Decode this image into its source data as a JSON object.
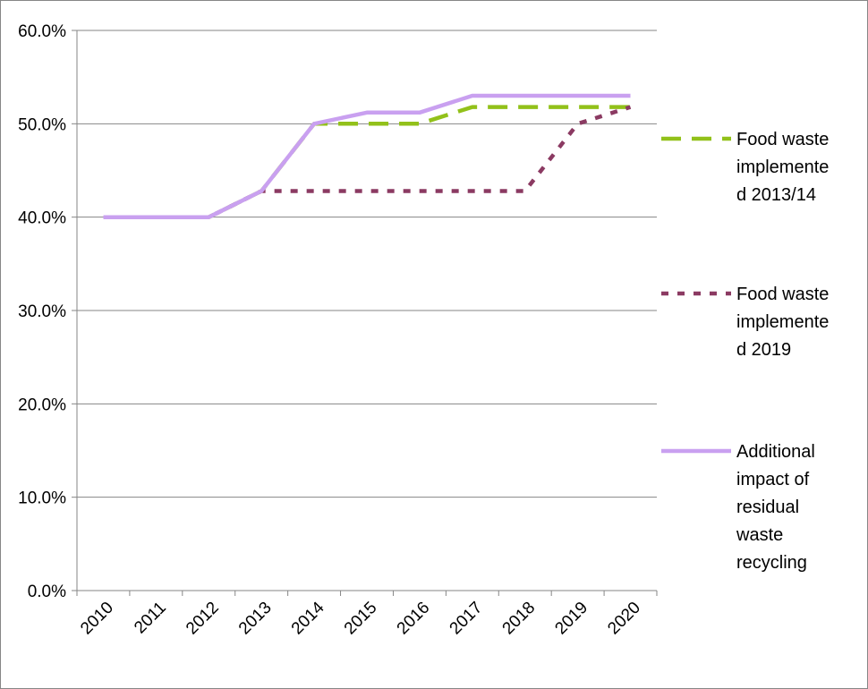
{
  "chart_data": {
    "type": "line",
    "title": "",
    "xlabel": "",
    "ylabel": "",
    "categories": [
      "2010",
      "2011",
      "2012",
      "2013",
      "2014",
      "2015",
      "2016",
      "2017",
      "2018",
      "2019",
      "2020"
    ],
    "ylim": [
      0,
      60
    ],
    "y_ticks": [
      "0.0%",
      "10.0%",
      "20.0%",
      "30.0%",
      "40.0%",
      "50.0%",
      "60.0%"
    ],
    "grid": true,
    "legend_position": "right",
    "series": [
      {
        "name_lines": [
          "Food waste",
          "implemente",
          "d 2013/14"
        ],
        "color": "#92c11a",
        "style": "long-dash",
        "values": [
          40.0,
          40.0,
          40.0,
          42.8,
          50.0,
          50.0,
          50.0,
          51.8,
          51.8,
          51.8,
          51.8
        ]
      },
      {
        "name_lines": [
          "Food waste",
          "implemente",
          "d 2019"
        ],
        "color": "#8b3a62",
        "style": "dot",
        "values": [
          40.0,
          40.0,
          40.0,
          42.8,
          42.8,
          42.8,
          42.8,
          42.8,
          42.8,
          50.0,
          51.8
        ]
      },
      {
        "name_lines": [
          "Additional",
          "impact of",
          "residual",
          "waste",
          "recycling"
        ],
        "color": "#c9a0f0",
        "style": "solid",
        "values": [
          40.0,
          40.0,
          40.0,
          42.8,
          50.0,
          51.2,
          51.2,
          53.0,
          53.0,
          53.0,
          53.0
        ]
      }
    ]
  }
}
